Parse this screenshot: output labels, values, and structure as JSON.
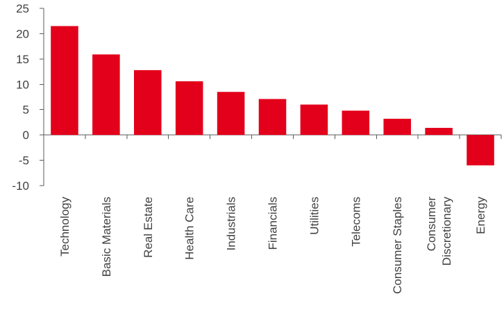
{
  "chart_data": {
    "type": "bar",
    "title": "",
    "xlabel": "",
    "ylabel": "",
    "categories": [
      [
        "Technology"
      ],
      [
        "Basic Materials"
      ],
      [
        "Real Estate"
      ],
      [
        "Health Care"
      ],
      [
        "Industrials"
      ],
      [
        "Financials"
      ],
      [
        "Utilities"
      ],
      [
        "Telecoms"
      ],
      [
        "Consumer Staples"
      ],
      [
        "Consumer",
        "Discretionary"
      ],
      [
        "Energy"
      ]
    ],
    "values": [
      21.5,
      15.9,
      12.8,
      10.6,
      8.5,
      7.1,
      6.0,
      4.8,
      3.2,
      1.4,
      -6.0
    ],
    "ylim": [
      -10,
      25
    ],
    "yticks": [
      -10,
      -5,
      0,
      5,
      10,
      15,
      20,
      25
    ],
    "bar_color": "#e3001b",
    "grid": false,
    "legend": "none"
  }
}
